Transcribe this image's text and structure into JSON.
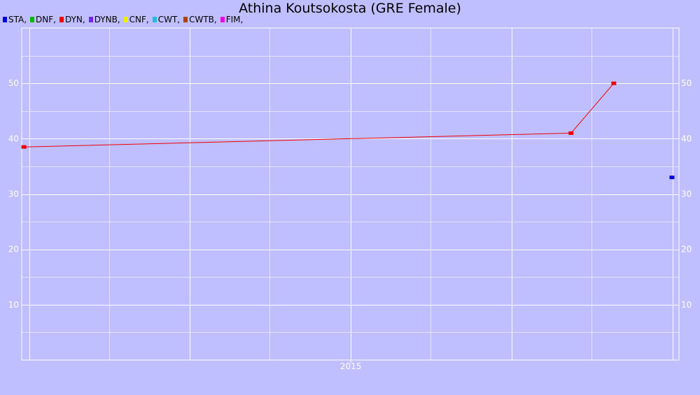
{
  "chart_data": {
    "type": "line",
    "title": "Athina Koutsokosta (GRE Female)",
    "legend": [
      {
        "name": "STA,",
        "color": "#0000dd"
      },
      {
        "name": "DNF,",
        "color": "#00bb00"
      },
      {
        "name": "DYN,",
        "color": "#ee0000"
      },
      {
        "name": "DYNB,",
        "color": "#7722ee"
      },
      {
        "name": "CNF,",
        "color": "#eeee00"
      },
      {
        "name": "CWT,",
        "color": "#22bbdd"
      },
      {
        "name": "CWTB,",
        "color": "#aa4400"
      },
      {
        "name": "FIM,",
        "color": "#ee00ee"
      }
    ],
    "legend_position": "top-left",
    "x_axis": {
      "type": "date",
      "range": [
        "2012-12-15",
        "2017-01-15"
      ],
      "tick_labels": [
        {
          "date": "2015-01-01",
          "label": "2015"
        }
      ]
    },
    "y_axis": {
      "range": [
        0,
        60
      ],
      "ticks": [
        10,
        20,
        30,
        40,
        50
      ],
      "labels_both_sides": true
    },
    "grid": true,
    "series": [
      {
        "name": "DYN",
        "color": "#ee0000",
        "points": [
          {
            "x": "2012-12-20",
            "y": 38.5
          },
          {
            "x": "2016-05-15",
            "y": 41
          },
          {
            "x": "2016-08-20",
            "y": 50
          }
        ]
      },
      {
        "name": "STA",
        "color": "#0000dd",
        "points": [
          {
            "x": "2016-12-30",
            "y": 33
          }
        ]
      }
    ]
  }
}
